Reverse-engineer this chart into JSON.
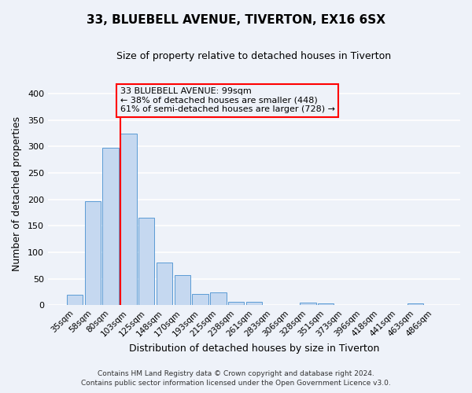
{
  "title_line1": "33, BLUEBELL AVENUE, TIVERTON, EX16 6SX",
  "title_line2": "Size of property relative to detached houses in Tiverton",
  "xlabel": "Distribution of detached houses by size in Tiverton",
  "ylabel": "Number of detached properties",
  "bar_labels": [
    "35sqm",
    "58sqm",
    "80sqm",
    "103sqm",
    "125sqm",
    "148sqm",
    "170sqm",
    "193sqm",
    "215sqm",
    "238sqm",
    "261sqm",
    "283sqm",
    "306sqm",
    "328sqm",
    "351sqm",
    "373sqm",
    "396sqm",
    "418sqm",
    "441sqm",
    "463sqm",
    "486sqm"
  ],
  "bar_values": [
    20,
    197,
    298,
    325,
    165,
    81,
    57,
    21,
    24,
    7,
    6,
    0,
    0,
    5,
    4,
    0,
    0,
    0,
    0,
    4,
    0
  ],
  "bar_color": "#c5d8f0",
  "bar_edge_color": "#5b9bd5",
  "vline_color": "red",
  "ylim": [
    0,
    420
  ],
  "yticks": [
    0,
    50,
    100,
    150,
    200,
    250,
    300,
    350,
    400
  ],
  "annotation_title": "33 BLUEBELL AVENUE: 99sqm",
  "annotation_line1": "← 38% of detached houses are smaller (448)",
  "annotation_line2": "61% of semi-detached houses are larger (728) →",
  "footer_line1": "Contains HM Land Registry data © Crown copyright and database right 2024.",
  "footer_line2": "Contains public sector information licensed under the Open Government Licence v3.0.",
  "bg_color": "#eef2f9",
  "grid_color": "white"
}
